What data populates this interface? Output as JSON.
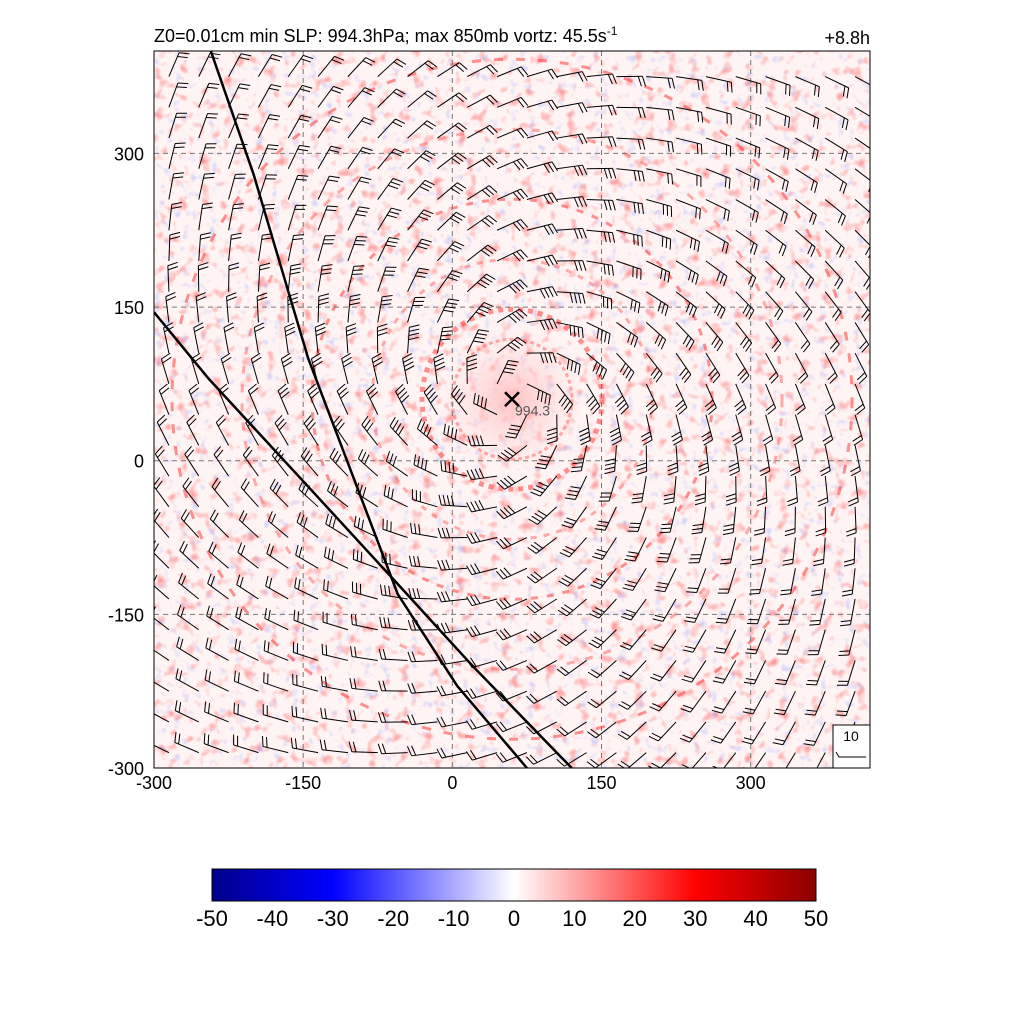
{
  "chart_data": {
    "type": "heatmap",
    "title_left": "Z0=0.01cm  min SLP: 994.3hPa; max 850mb vortz:  45.5s",
    "title_superscript": "-1",
    "title_right": "+8.8h",
    "xlim": [
      -300,
      420
    ],
    "ylim": [
      -300,
      400
    ],
    "xticks": [
      -300,
      -150,
      0,
      150,
      300
    ],
    "yticks": [
      -300,
      -150,
      0,
      150,
      300
    ],
    "grid": true,
    "center": {
      "x": 60,
      "y": 60,
      "label": "994.3",
      "marker": "x"
    },
    "barb_spacing": 30,
    "barb_legend_label": "10",
    "tracks": [
      {
        "points": [
          [
            -250,
            420
          ],
          [
            -200,
            280
          ],
          [
            -145,
            100
          ],
          [
            -55,
            -130
          ],
          [
            5,
            -220
          ],
          [
            75,
            -300
          ]
        ]
      },
      {
        "points": [
          [
            -300,
            145
          ],
          [
            -245,
            80
          ],
          [
            -150,
            -20
          ],
          [
            -60,
            -115
          ],
          [
            20,
            -200
          ],
          [
            120,
            -300
          ]
        ]
      }
    ],
    "colorbar": {
      "min": -50,
      "max": 50,
      "ticks": [
        -50,
        -40,
        -30,
        -20,
        -10,
        0,
        10,
        20,
        30,
        40,
        50
      ],
      "colors": [
        "#00008b",
        "#0000ff",
        "#ffffff",
        "#ff0000",
        "#8b0000"
      ]
    }
  }
}
